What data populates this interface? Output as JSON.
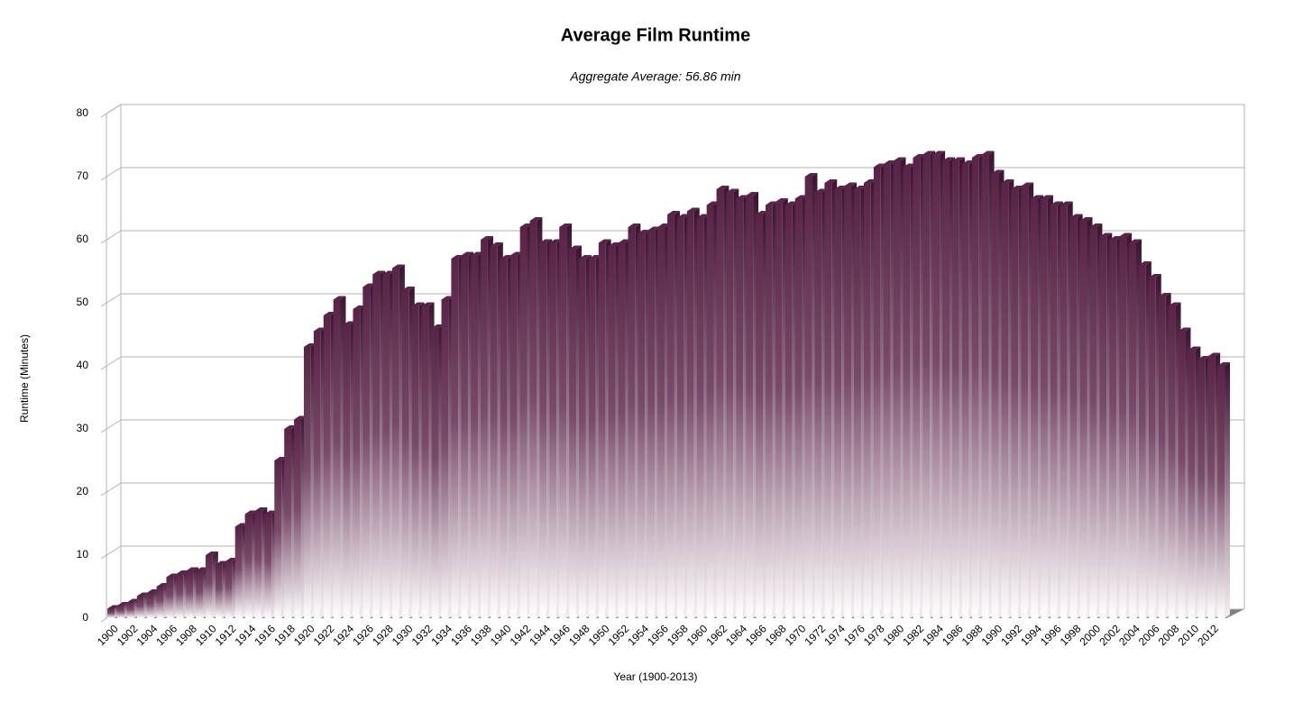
{
  "chart_data": {
    "type": "bar",
    "title": "Average Film Runtime",
    "subtitle": "Aggregate Average: 56.86 min",
    "x_label": "Year (1900-2013)",
    "y_label": "Runtime (Minutes)",
    "color": "#5a2448",
    "grid": true,
    "ylim": [
      0,
      80
    ],
    "yticks": [
      0,
      10,
      20,
      30,
      40,
      50,
      60,
      70,
      80
    ],
    "categories": [
      "1900",
      null,
      "1902",
      null,
      "1904",
      null,
      "1906",
      null,
      "1908",
      null,
      "1910",
      null,
      "1912",
      null,
      "1914",
      null,
      "1916",
      null,
      "1918",
      null,
      "1920",
      null,
      "1922",
      null,
      "1924",
      null,
      "1926",
      null,
      "1928",
      null,
      "1930",
      null,
      "1932",
      null,
      "1934",
      null,
      "1936",
      null,
      "1938",
      null,
      "1940",
      null,
      "1942",
      null,
      "1944",
      null,
      "1946",
      null,
      "1948",
      null,
      "1950",
      null,
      "1952",
      null,
      "1954",
      null,
      "1956",
      null,
      "1958",
      null,
      "1960",
      null,
      "1962",
      null,
      "1964",
      null,
      "1966",
      null,
      "1968",
      null,
      "1970",
      null,
      "1972",
      null,
      "1974",
      null,
      "1976",
      null,
      "1978",
      null,
      "1980",
      null,
      "1982",
      null,
      "1984",
      null,
      "1986",
      null,
      "1988",
      null,
      "1990",
      null,
      "1992",
      null,
      "1994",
      null,
      "1996",
      null,
      "1998",
      null,
      "2000",
      null,
      "2002",
      null,
      "2004",
      null,
      "2006",
      null,
      "2008",
      null,
      "2010",
      null,
      "2012",
      null
    ],
    "values": [
      1.5,
      2,
      2.5,
      3.5,
      4,
      5,
      6.5,
      7,
      7.5,
      7.5,
      10,
      8.5,
      9,
      14.5,
      16.5,
      17,
      16.5,
      25,
      30,
      31.5,
      43,
      45.5,
      48,
      50.5,
      46.5,
      49,
      52.5,
      54.5,
      54.5,
      55.5,
      52,
      49.5,
      49.5,
      46,
      50.5,
      57,
      57.5,
      57.5,
      60,
      59,
      57,
      57.5,
      62,
      63,
      59.5,
      59.5,
      62,
      58.5,
      57,
      57,
      59.5,
      59,
      59.5,
      62,
      61,
      61.5,
      62,
      64,
      63.5,
      64.5,
      63.5,
      65.5,
      68,
      67.5,
      66.5,
      67,
      64,
      65.5,
      66,
      65.5,
      66.5,
      70,
      67.5,
      69,
      68,
      68.5,
      68,
      69,
      71.5,
      72,
      72.5,
      71.5,
      73,
      73.5,
      73.5,
      72.5,
      72.5,
      72,
      73,
      73.5,
      70.5,
      69,
      68,
      68.5,
      66.5,
      66.5,
      65.5,
      65.5,
      63.5,
      63,
      62,
      60.5,
      60,
      60.5,
      59.5,
      56,
      54,
      51,
      49.5,
      45.5,
      42.5,
      41,
      41.5,
      40
    ]
  }
}
